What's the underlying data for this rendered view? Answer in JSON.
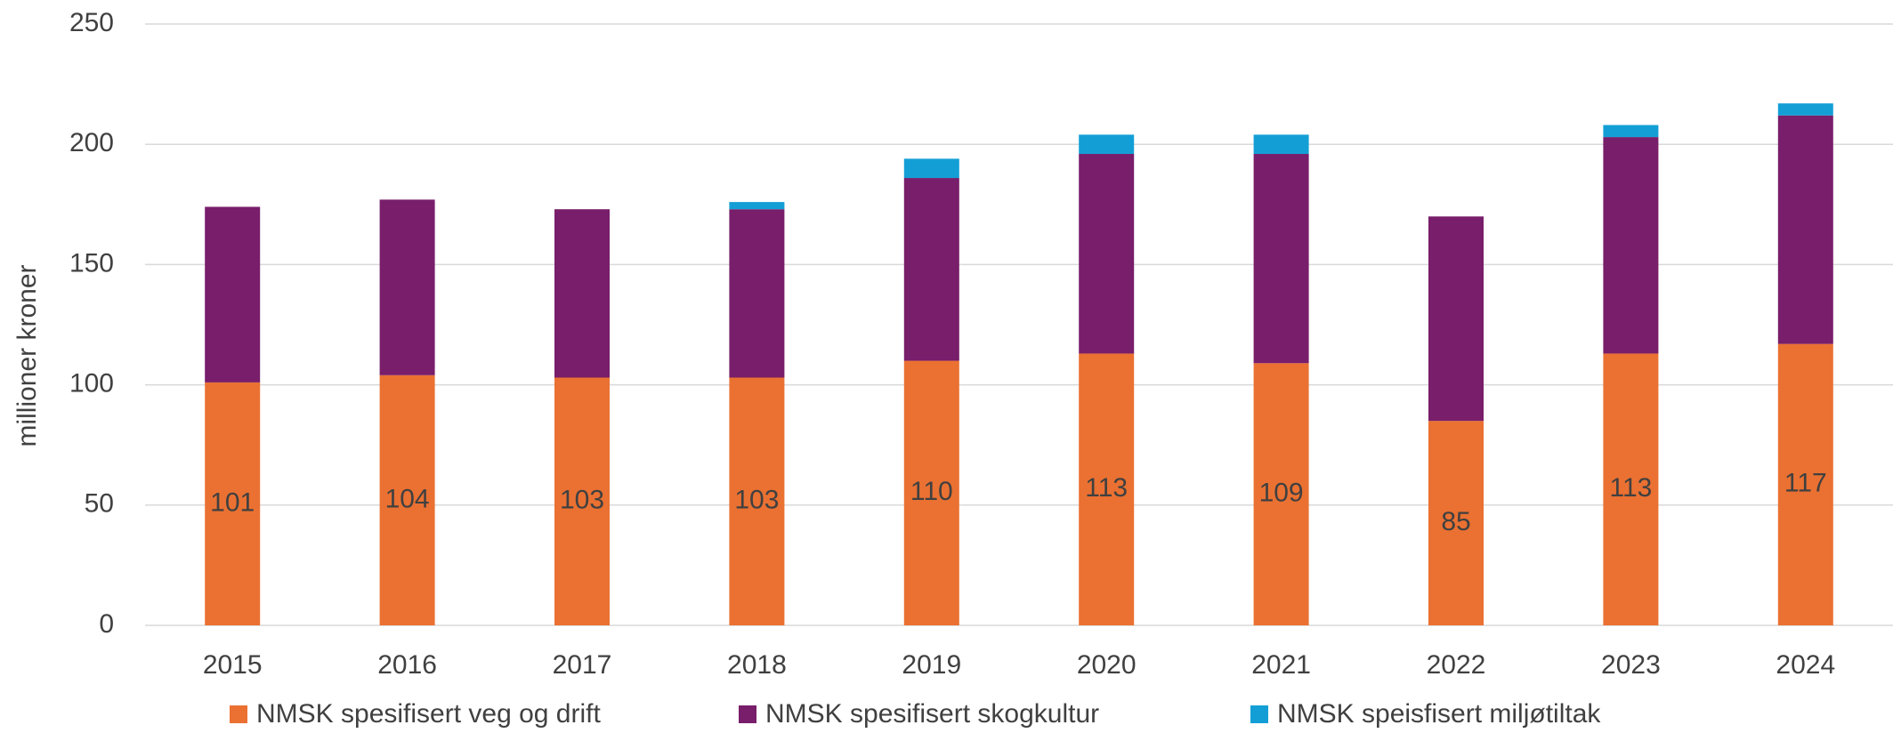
{
  "chart_data": {
    "type": "stacked_bar",
    "ylabel": "millioner kroner",
    "categories": [
      "2015",
      "2016",
      "2017",
      "2018",
      "2019",
      "2020",
      "2021",
      "2022",
      "2023",
      "2024"
    ],
    "series": [
      {
        "name": "NMSK spesifisert veg og drift",
        "color": "#ea7132",
        "values": [
          101,
          104,
          103,
          103,
          110,
          113,
          109,
          85,
          113,
          117
        ],
        "data_labels": true
      },
      {
        "name": "NMSK spesifisert skogkultur",
        "color": "#781e6a",
        "values": [
          73,
          73,
          70,
          70,
          76,
          83,
          87,
          85,
          90,
          95
        ],
        "data_labels": false
      },
      {
        "name": "NMSK speisfisert miljøtiltak",
        "color": "#139fd6",
        "values": [
          0,
          0,
          0,
          3,
          8,
          8,
          8,
          0,
          5,
          5
        ],
        "data_labels": false
      }
    ],
    "ylim": [
      0,
      250
    ],
    "yticks": [
      0,
      50,
      100,
      150,
      200,
      250
    ],
    "grid": true,
    "legend": "bottom"
  }
}
